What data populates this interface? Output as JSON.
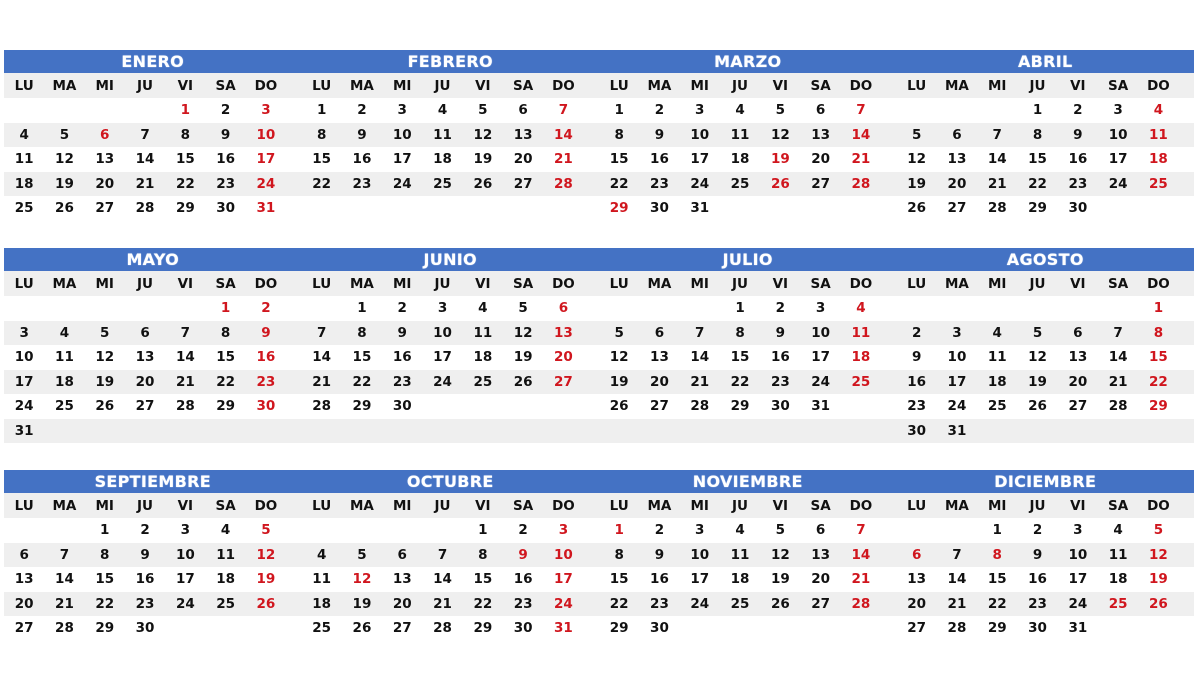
{
  "weekdays": [
    "LU",
    "MA",
    "MI",
    "JU",
    "VI",
    "SA",
    "DO"
  ],
  "colors": {
    "header_bar": "#4472C4",
    "holiday": "#d0161e",
    "text": "#111111",
    "row_stripe": "#efefef"
  },
  "blocks": [
    {
      "rows": 5,
      "months": [
        {
          "name": "ENERO",
          "offset": 4,
          "days": 31,
          "red": [
            1,
            3,
            6,
            10,
            17,
            24,
            31
          ]
        },
        {
          "name": "FEBRERO",
          "offset": 0,
          "days": 28,
          "red": [
            7,
            14,
            21,
            28
          ]
        },
        {
          "name": "MARZO",
          "offset": 0,
          "days": 31,
          "red": [
            7,
            14,
            19,
            21,
            26,
            28,
            29
          ]
        },
        {
          "name": "ABRIL",
          "offset": 3,
          "days": 30,
          "red": [
            4,
            11,
            18,
            25
          ]
        }
      ]
    },
    {
      "rows": 6,
      "months": [
        {
          "name": "MAYO",
          "offset": 5,
          "days": 31,
          "red": [
            1,
            2,
            9,
            16,
            23,
            30
          ]
        },
        {
          "name": "JUNIO",
          "offset": 1,
          "days": 30,
          "red": [
            6,
            13,
            20,
            27
          ]
        },
        {
          "name": "JULIO",
          "offset": 3,
          "days": 31,
          "red": [
            4,
            11,
            18,
            25
          ]
        },
        {
          "name": "AGOSTO",
          "offset": 6,
          "days": 31,
          "red": [
            1,
            8,
            15,
            22,
            29
          ]
        }
      ]
    },
    {
      "rows": 5,
      "months": [
        {
          "name": "SEPTIEMBRE",
          "offset": 2,
          "days": 30,
          "red": [
            5,
            12,
            19,
            26
          ]
        },
        {
          "name": "OCTUBRE",
          "offset": 4,
          "days": 31,
          "red": [
            3,
            9,
            10,
            12,
            17,
            24,
            31
          ]
        },
        {
          "name": "NOVIEMBRE",
          "offset": 0,
          "days": 30,
          "red": [
            1,
            7,
            14,
            21,
            28
          ]
        },
        {
          "name": "DICIEMBRE",
          "offset": 2,
          "days": 31,
          "red": [
            5,
            6,
            8,
            12,
            19,
            25,
            26
          ]
        }
      ]
    }
  ]
}
